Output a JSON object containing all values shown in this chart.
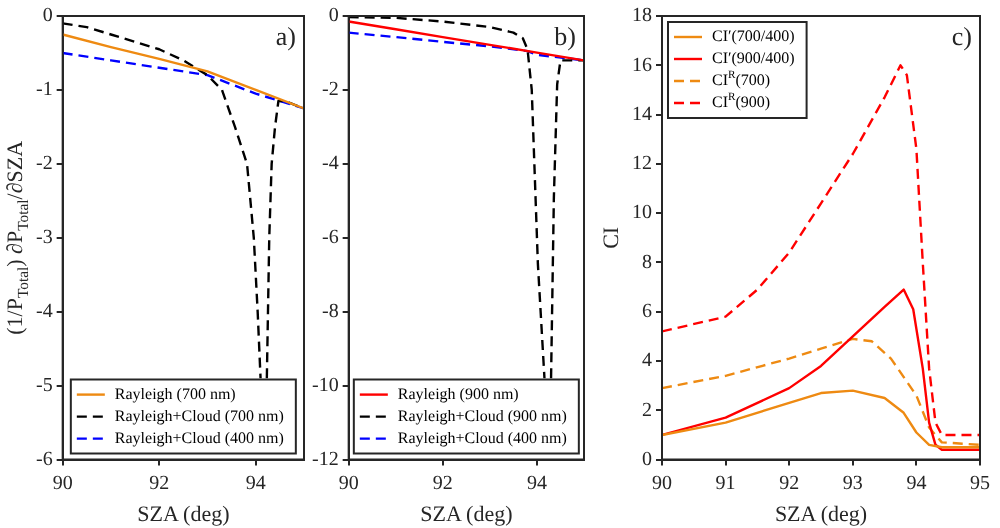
{
  "chart_data": [
    {
      "type": "line",
      "xlabel": "SZA (deg)",
      "ylabel": "(1/P$_{Total}$) ∂P$_{Total}$/∂SZA",
      "xlim": [
        90,
        95
      ],
      "xticks": [
        90,
        92,
        94
      ],
      "ylim": [
        -6,
        0
      ],
      "yticks": [
        -6,
        -5,
        -4,
        -3,
        -2,
        -1,
        0
      ],
      "grid": false,
      "legend": "bottom",
      "annotations": [
        "a)"
      ],
      "series": [
        {
          "name": "Rayleigh (700 nm)",
          "color": "#ee8a12",
          "line_style": "solid",
          "x": [
            90,
            91,
            92,
            93,
            94,
            95
          ],
          "values": [
            -0.25,
            -0.42,
            -0.58,
            -0.75,
            -1.0,
            -1.25
          ]
        },
        {
          "name": "Rayleigh+Cloud (700 nm)",
          "color": "#000000",
          "line_style": "dashed",
          "x": [
            90,
            90.5,
            91,
            91.5,
            92,
            92.5,
            93,
            93.3,
            93.57,
            93.82,
            93.96,
            94.04,
            94.1,
            94.17,
            94.23,
            94.28,
            94.33,
            94.4,
            94.47,
            94.6,
            95
          ],
          "values": [
            -0.1,
            -0.15,
            -0.25,
            -0.35,
            -0.45,
            -0.6,
            -0.8,
            -1.0,
            -1.5,
            -2,
            -3,
            -4,
            -4.9,
            null,
            -4.9,
            -3,
            -2,
            -1.5,
            -1.15,
            -1.15,
            -1.25
          ]
        },
        {
          "name": "Rayleigh+Cloud (400 nm)",
          "color": "#0000ff",
          "line_style": "dashed",
          "x": [
            90,
            91,
            92,
            93,
            94,
            95
          ],
          "values": [
            -0.5,
            -0.6,
            -0.7,
            -0.8,
            -1.05,
            -1.25
          ]
        }
      ]
    },
    {
      "type": "line",
      "xlabel": "SZA (deg)",
      "xlim": [
        90,
        95
      ],
      "xticks": [
        90,
        92,
        94
      ],
      "ylim": [
        -12,
        0
      ],
      "yticks": [
        -12,
        -10,
        -8,
        -6,
        -4,
        -2,
        0
      ],
      "grid": false,
      "legend": "bottom",
      "annotations": [
        "b)"
      ],
      "series": [
        {
          "name": "Rayleigh (900 nm)",
          "color": "#ff0000",
          "line_style": "solid",
          "x": [
            90,
            91,
            92,
            93,
            94,
            95
          ],
          "values": [
            -0.15,
            -0.36,
            -0.57,
            -0.78,
            -0.99,
            -1.2
          ]
        },
        {
          "name": "Rayleigh+Cloud (900 nm)",
          "color": "#000000",
          "line_style": "dashed",
          "x": [
            90,
            91,
            92,
            93,
            93.5,
            93.7,
            93.8,
            93.89,
            94.02,
            94.16,
            94.23,
            94.3,
            94.36,
            94.43,
            94.5,
            95
          ],
          "values": [
            -0.03,
            -0.05,
            -0.15,
            -0.3,
            -0.45,
            -0.6,
            -0.9,
            -2,
            -6.7,
            -9.8,
            null,
            -9.8,
            -4.9,
            -1.85,
            -1.2,
            -1.2
          ]
        },
        {
          "name": "Rayleigh+Cloud (400 nm)",
          "color": "#0000ff",
          "line_style": "dashed",
          "x": [
            90,
            91,
            92,
            93,
            93.8,
            94,
            95
          ],
          "values": [
            -0.45,
            -0.57,
            -0.7,
            -0.82,
            -0.95,
            -1.05,
            -1.2
          ]
        }
      ]
    },
    {
      "type": "line",
      "xlabel": "SZA (deg)",
      "ylabel": "CI",
      "xlim": [
        90,
        95
      ],
      "xticks": [
        90,
        91,
        92,
        93,
        94,
        95
      ],
      "ylim": [
        0,
        18
      ],
      "yticks": [
        0,
        2,
        4,
        6,
        8,
        10,
        12,
        14,
        16,
        18
      ],
      "grid": false,
      "legend": "top left",
      "annotations": [
        "c)"
      ],
      "series": [
        {
          "name": "CI′(700/400)",
          "color": "#ee8a12",
          "line_style": "solid",
          "x": [
            90,
            91,
            92,
            92.5,
            93,
            93.5,
            93.8,
            94,
            94.2,
            94.4,
            95
          ],
          "values": [
            1.0,
            1.5,
            2.3,
            2.7,
            2.8,
            2.5,
            1.9,
            1.1,
            0.6,
            0.5,
            0.5
          ]
        },
        {
          "name": "CI′(900/400)",
          "color": "#ff0000",
          "line_style": "solid",
          "x": [
            90,
            91,
            92,
            92.5,
            93,
            93.5,
            93.8,
            93.95,
            94.1,
            94.2,
            94.3,
            94.4,
            95
          ],
          "values": [
            1.0,
            1.7,
            2.9,
            3.8,
            5.0,
            6.2,
            6.9,
            6.1,
            3.7,
            1.5,
            0.6,
            0.4,
            0.4
          ]
        },
        {
          "name": "CI$^{R}$(700)",
          "color": "#ee8a12",
          "line_style": "dashed",
          "x": [
            90,
            91,
            92,
            92.5,
            93,
            93.3,
            93.6,
            94,
            94.2,
            94.4,
            95
          ],
          "values": [
            2.9,
            3.4,
            4.1,
            4.5,
            4.9,
            4.8,
            4.1,
            2.6,
            1.3,
            0.7,
            0.6
          ]
        },
        {
          "name": "CI$^{R}$(900)",
          "color": "#ff0000",
          "line_style": "dashed",
          "x": [
            90,
            91,
            91.5,
            92,
            92.5,
            93,
            93.5,
            93.75,
            93.85,
            94,
            94.1,
            94.2,
            94.3,
            94.4,
            95
          ],
          "values": [
            5.2,
            5.8,
            6.9,
            8.4,
            10.4,
            12.4,
            14.7,
            16.0,
            15.6,
            12.6,
            8.0,
            3.7,
            1.5,
            1.0,
            1.0
          ]
        }
      ]
    }
  ]
}
